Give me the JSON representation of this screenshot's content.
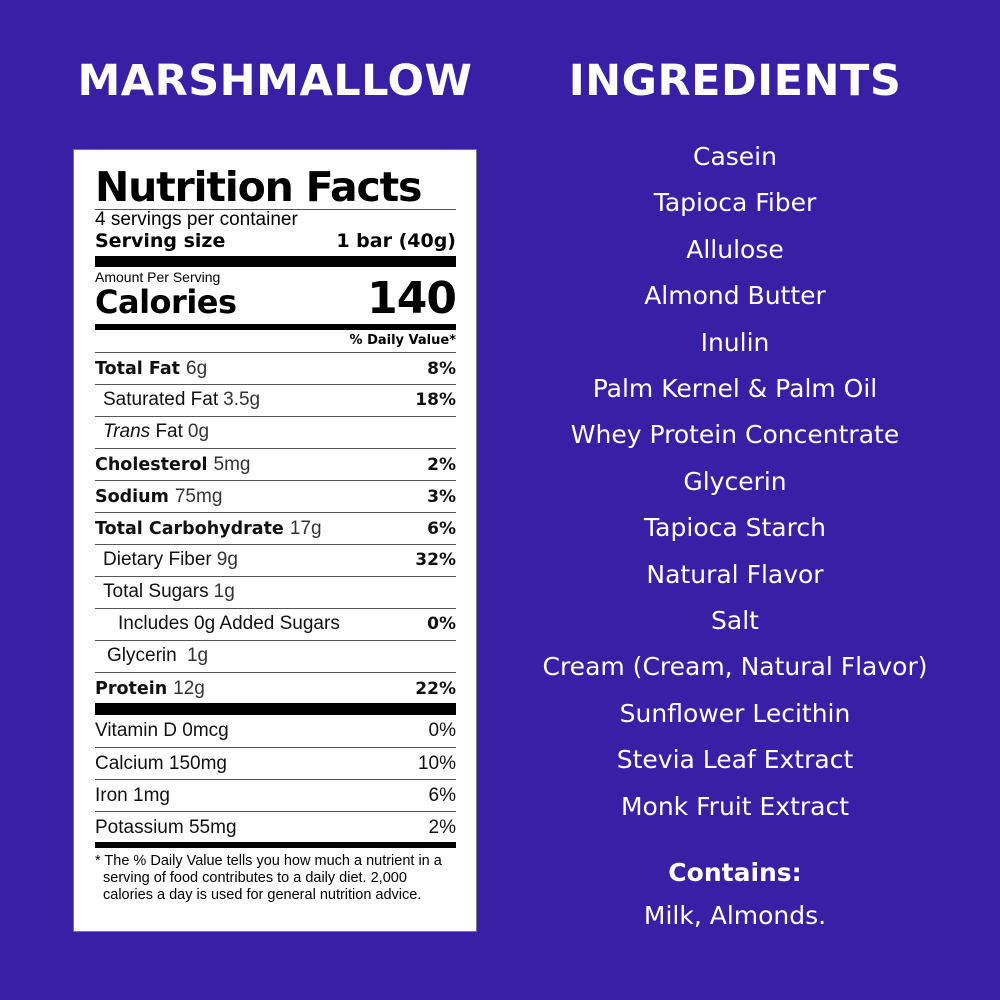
{
  "left_title": "MARSHMALLOW",
  "right_title": "INGREDIENTS",
  "label": {
    "title": "Nutrition Facts",
    "servings": "4 servings per container",
    "serving_size_label": "Serving size",
    "serving_size_value": "1 bar (40g)",
    "amount_per_serving": "Amount Per Serving",
    "calories_label": "Calories",
    "calories_value": "140",
    "dv_header": "% Daily Value*",
    "rows": [
      {
        "name": "Total Fat",
        "amount": "6g",
        "dv": "8%",
        "bold": true,
        "indent": 0
      },
      {
        "name": "Saturated Fat",
        "amount": "3.5g",
        "dv": "18%",
        "bold": false,
        "indent": 1
      },
      {
        "name": "Trans",
        "name_suffix": " Fat",
        "amount": "0g",
        "dv": "",
        "bold": false,
        "indent": 1
      },
      {
        "name": "Cholesterol",
        "amount": "5mg",
        "dv": "2%",
        "bold": true,
        "indent": 0
      },
      {
        "name": "Sodium",
        "amount": "75mg",
        "dv": "3%",
        "bold": true,
        "indent": 0
      },
      {
        "name": "Total Carbohydrate",
        "amount": "17g",
        "dv": "6%",
        "bold": true,
        "indent": 0
      },
      {
        "name": "Dietary Fiber",
        "amount": "9g",
        "dv": "32%",
        "bold": false,
        "indent": 1
      },
      {
        "name": "Total Sugars",
        "amount": "1g",
        "dv": "",
        "bold": false,
        "indent": 1
      },
      {
        "name": "Includes 0g Added Sugars",
        "amount": "",
        "dv": "0%",
        "bold": false,
        "indent": 2
      },
      {
        "name": "Glycerin",
        "amount": " 1g",
        "dv": "",
        "bold": false,
        "indent": 1
      },
      {
        "name": "Protein",
        "amount": "12g",
        "dv": "22%",
        "bold": true,
        "indent": 0
      }
    ],
    "vitamins": [
      {
        "name": "Vitamin D 0mcg",
        "dv": "0%"
      },
      {
        "name": "Calcium 150mg",
        "dv": "10%"
      },
      {
        "name": "Iron 1mg",
        "dv": "6%"
      },
      {
        "name": "Potassium 55mg",
        "dv": "2%"
      }
    ],
    "footnote": "* The % Daily Value tells you how much a nutrient in a serving of food contributes to a daily diet. 2,000 calories a day is used for general nutrition advice."
  },
  "ingredients": [
    "Casein",
    "Tapioca Fiber",
    "Allulose",
    "Almond Butter",
    "Inulin",
    "Palm Kernel & Palm Oil",
    "Whey Protein Concentrate",
    "Glycerin",
    "Tapioca Starch",
    "Natural Flavor",
    "Salt",
    "Cream (Cream, Natural Flavor)",
    "Sunflower Lecithin",
    "Stevia Leaf Extract",
    "Monk Fruit Extract"
  ],
  "contains_label": "Contains:",
  "contains_value": "Milk, Almonds."
}
